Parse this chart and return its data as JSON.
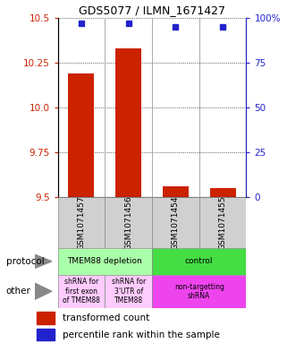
{
  "title": "GDS5077 / ILMN_1671427",
  "samples": [
    "GSM1071457",
    "GSM1071456",
    "GSM1071454",
    "GSM1071455"
  ],
  "bar_values": [
    10.19,
    10.33,
    9.56,
    9.55
  ],
  "percentile_values": [
    97,
    97,
    95,
    95
  ],
  "ylim_left": [
    9.5,
    10.5
  ],
  "ylim_right": [
    0,
    100
  ],
  "yticks_left": [
    9.5,
    9.75,
    10.0,
    10.25,
    10.5
  ],
  "yticks_right": [
    0,
    25,
    50,
    75,
    100
  ],
  "bar_color": "#cc2200",
  "dot_color": "#2222cc",
  "bar_width": 0.55,
  "protocol_labels_grouped": [
    {
      "label": "TMEM88 depletion",
      "span": [
        0,
        2
      ],
      "color": "#aaffaa"
    },
    {
      "label": "control",
      "span": [
        2,
        4
      ],
      "color": "#44dd44"
    }
  ],
  "other_labels_grouped": [
    {
      "label": "shRNA for\nfirst exon\nof TMEM88",
      "span": [
        0,
        1
      ],
      "color": "#ffccff"
    },
    {
      "label": "shRNA for\n3'UTR of\nTMEM88",
      "span": [
        1,
        2
      ],
      "color": "#ffccff"
    },
    {
      "label": "non-targetting\nshRNA",
      "span": [
        2,
        4
      ],
      "color": "#ee44ee"
    }
  ],
  "legend_red_label": "transformed count",
  "legend_blue_label": "percentile rank within the sample",
  "protocol_row_label": "protocol",
  "other_row_label": "other",
  "cell_bg": "#d0d0d0",
  "cell_border": "#888888"
}
